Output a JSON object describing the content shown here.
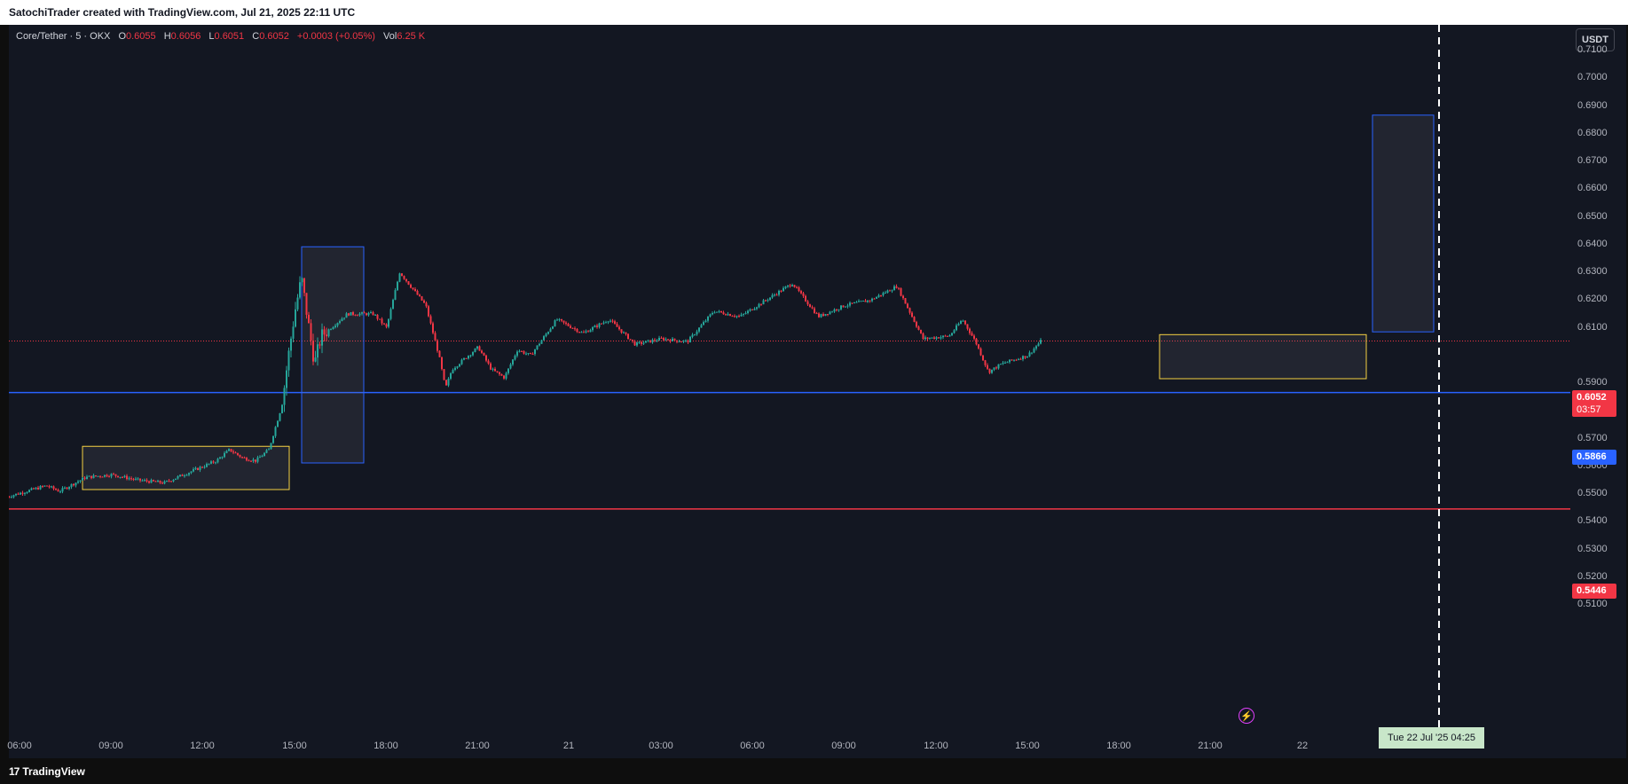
{
  "header": {
    "attribution": "SatochiTrader created with TradingView.com, Jul 21, 2025 22:11 UTC"
  },
  "legend": {
    "symbol": "Core/Tether · 5 · OKX",
    "open_label": "O",
    "open": "0.6055",
    "high_label": "H",
    "high": "0.6056",
    "low_label": "L",
    "low": "0.6051",
    "close_label": "C",
    "close": "0.6052",
    "change": "+0.0003 (+0.05%)",
    "vol_label": "Vol",
    "vol": "6.25 K"
  },
  "currency_button": "USDT",
  "price_axis": {
    "ticks": [
      "0.7100",
      "0.7000",
      "0.6900",
      "0.6800",
      "0.6700",
      "0.6600",
      "0.6500",
      "0.6400",
      "0.6300",
      "0.6200",
      "0.6100",
      "0.5900",
      "0.5800",
      "0.5700",
      "0.5600",
      "0.5500",
      "0.5400",
      "0.5300",
      "0.5200",
      "0.5100"
    ],
    "current_price": "0.6052",
    "countdown": "03:57",
    "blue_line_label": "0.5866",
    "red_line_label": "0.5446"
  },
  "time_axis": {
    "ticks": [
      "06:00",
      "09:00",
      "12:00",
      "15:00",
      "18:00",
      "21:00",
      "21",
      "03:00",
      "06:00",
      "09:00",
      "12:00",
      "15:00",
      "18:00",
      "21:00",
      "22"
    ],
    "crosshair_label": "Tue 22 Jul '25   04:25"
  },
  "footer": {
    "logo_mark": "17",
    "logo_text": "TradingView"
  },
  "colors": {
    "up": "#26a69a",
    "down": "#f23645",
    "blue_line": "#2962ff",
    "red_line": "#f23645",
    "yellow_box": "#f5d142",
    "blue_box": "#2962ff"
  },
  "chart_data": {
    "type": "candlestick",
    "symbol": "Core/Tether",
    "interval": "5",
    "exchange": "OKX",
    "ylim": [
      0.505,
      0.715
    ],
    "horizontal_lines": [
      {
        "price": 0.5866,
        "color": "blue"
      },
      {
        "price": 0.5446,
        "color": "red"
      }
    ],
    "current_price_line": 0.6052,
    "path_points": [
      [
        "06:00",
        0.549
      ],
      [
        "07:30",
        0.553
      ],
      [
        "08:00",
        0.551
      ],
      [
        "09:00",
        0.556
      ],
      [
        "10:00",
        0.557
      ],
      [
        "11:00",
        0.555
      ],
      [
        "12:00",
        0.554
      ],
      [
        "13:00",
        0.558
      ],
      [
        "14:00",
        0.562
      ],
      [
        "14:30",
        0.566
      ],
      [
        "15:00",
        0.563
      ],
      [
        "15:30",
        0.562
      ],
      [
        "16:00",
        0.566
      ],
      [
        "16:30",
        0.582
      ],
      [
        "16:45",
        0.6
      ],
      [
        "17:00",
        0.616
      ],
      [
        "17:15",
        0.628
      ],
      [
        "17:30",
        0.612
      ],
      [
        "17:45",
        0.597
      ],
      [
        "18:00",
        0.607
      ],
      [
        "19:00",
        0.615
      ],
      [
        "20:00",
        0.615
      ],
      [
        "20:30",
        0.61
      ],
      [
        "21:00",
        0.63
      ],
      [
        "21:30",
        0.624
      ],
      [
        "22:00",
        0.618
      ],
      [
        "22:30",
        0.6
      ],
      [
        "22:45",
        0.588
      ],
      [
        "23:00",
        0.595
      ],
      [
        "00:00",
        0.603
      ],
      [
        "00:30",
        0.595
      ],
      [
        "01:00",
        0.592
      ],
      [
        "01:30",
        0.602
      ],
      [
        "02:00",
        0.6
      ],
      [
        "03:00",
        0.613
      ],
      [
        "04:00",
        0.608
      ],
      [
        "05:00",
        0.613
      ],
      [
        "06:00",
        0.604
      ],
      [
        "07:00",
        0.606
      ],
      [
        "08:00",
        0.605
      ],
      [
        "09:00",
        0.616
      ],
      [
        "10:00",
        0.614
      ],
      [
        "11:00",
        0.62
      ],
      [
        "12:00",
        0.626
      ],
      [
        "13:00",
        0.614
      ],
      [
        "14:00",
        0.618
      ],
      [
        "15:00",
        0.62
      ],
      [
        "16:00",
        0.625
      ],
      [
        "17:00",
        0.606
      ],
      [
        "18:00",
        0.607
      ],
      [
        "18:30",
        0.613
      ],
      [
        "19:00",
        0.605
      ],
      [
        "19:30",
        0.594
      ],
      [
        "20:00",
        0.597
      ],
      [
        "21:00",
        0.6
      ],
      [
        "21:30",
        0.6052
      ]
    ],
    "annotations": [
      {
        "type": "rectangle",
        "color": "yellow",
        "x_range": [
          "08:00",
          "15:00"
        ],
        "price_range": [
          0.5516,
          0.5672
        ]
      },
      {
        "type": "rectangle",
        "color": "blue",
        "x_range": [
          "15:15",
          "17:15"
        ],
        "price_range": [
          0.5612,
          0.6392
        ]
      },
      {
        "type": "rectangle",
        "color": "yellow",
        "x_range": [
          "19:45",
          "02:30"
        ],
        "price_range": [
          0.5916,
          0.6075
        ]
      },
      {
        "type": "rectangle",
        "color": "blue",
        "x_range": [
          "00:15",
          "02:15"
        ],
        "price_range": [
          0.6085,
          0.6867
        ]
      },
      {
        "type": "vertical-dashed-line",
        "time": "Tue 22 Jul '25 04:25"
      }
    ]
  }
}
